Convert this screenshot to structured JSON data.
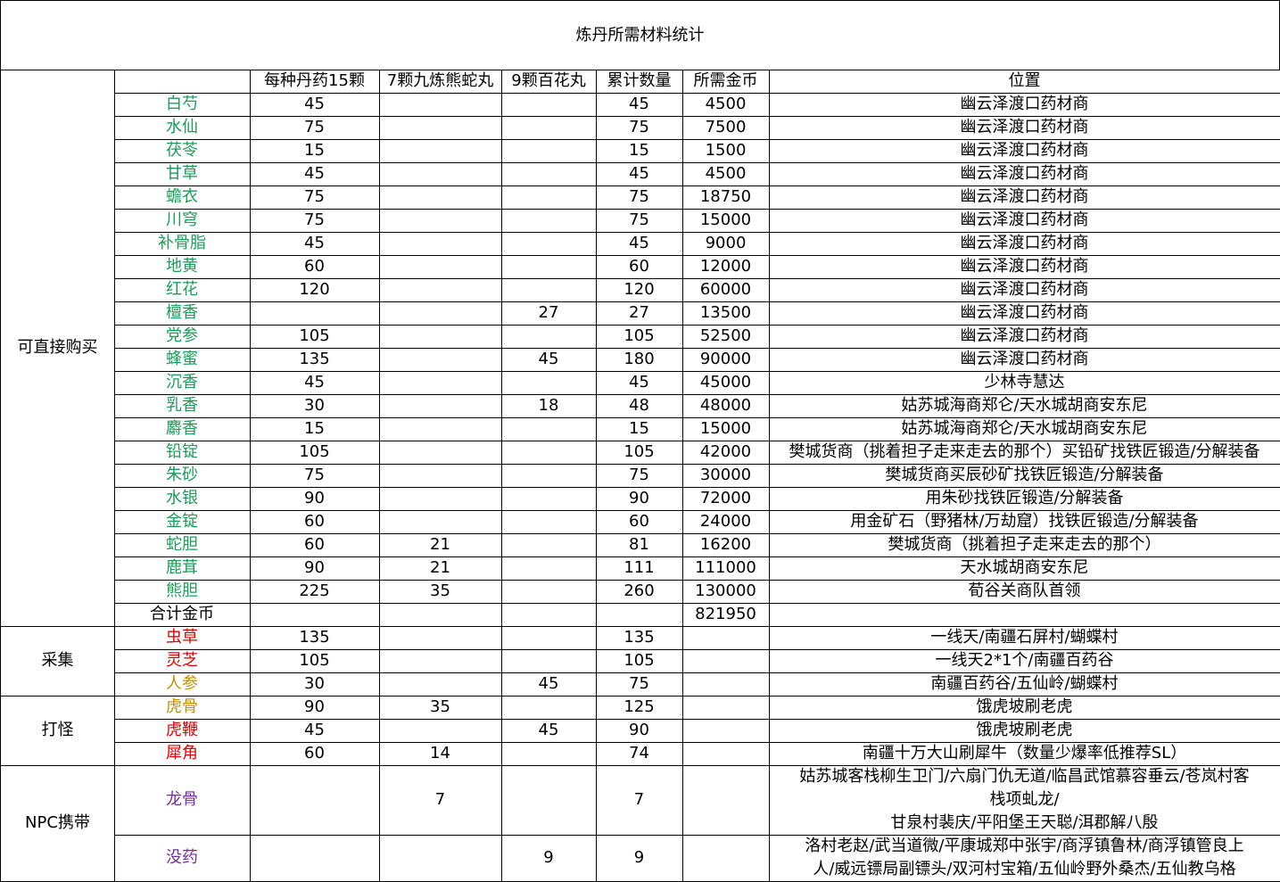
{
  "title": "炼丹所需材料统计",
  "headers": [
    "每种丹药15颗",
    "7颗九炼熊蛇丸",
    "9颗百花丸",
    "累计数量",
    "所需金币",
    "位置"
  ],
  "groups": [
    {
      "label": "可直接购买",
      "rows": [
        {
          "color": "#1b9c5a",
          "cells": [
            "白芍",
            45,
            null,
            null,
            45,
            4500,
            "幽云泽渡口药材商"
          ]
        },
        {
          "color": "#1b9c5a",
          "cells": [
            "水仙",
            75,
            null,
            null,
            75,
            7500,
            "幽云泽渡口药材商"
          ]
        },
        {
          "color": "#1b9c5a",
          "cells": [
            "茯苓",
            15,
            null,
            null,
            15,
            1500,
            "幽云泽渡口药材商"
          ]
        },
        {
          "color": "#1b9c5a",
          "cells": [
            "甘草",
            45,
            null,
            null,
            45,
            4500,
            "幽云泽渡口药材商"
          ]
        },
        {
          "color": "#1b9c5a",
          "cells": [
            "蟾衣",
            75,
            null,
            null,
            75,
            18750,
            "幽云泽渡口药材商"
          ]
        },
        {
          "color": "#1b9c5a",
          "cells": [
            "川穹",
            75,
            null,
            null,
            75,
            15000,
            "幽云泽渡口药材商"
          ]
        },
        {
          "color": "#1b9c5a",
          "cells": [
            "补骨脂",
            45,
            null,
            null,
            45,
            9000,
            "幽云泽渡口药材商"
          ]
        },
        {
          "color": "#1b9c5a",
          "cells": [
            "地黄",
            60,
            null,
            null,
            60,
            12000,
            "幽云泽渡口药材商"
          ]
        },
        {
          "color": "#1b9c5a",
          "cells": [
            "红花",
            120,
            null,
            null,
            120,
            60000,
            "幽云泽渡口药材商"
          ]
        },
        {
          "color": "#1b9c5a",
          "cells": [
            "檀香",
            null,
            null,
            27,
            27,
            13500,
            "幽云泽渡口药材商"
          ]
        },
        {
          "color": "#1b9c5a",
          "cells": [
            "党参",
            105,
            null,
            null,
            105,
            52500,
            "幽云泽渡口药材商"
          ]
        },
        {
          "color": "#1b9c5a",
          "cells": [
            "蜂蜜",
            135,
            null,
            45,
            180,
            90000,
            "幽云泽渡口药材商"
          ]
        },
        {
          "color": "#1b9c5a",
          "cells": [
            "沉香",
            45,
            null,
            null,
            45,
            45000,
            "少林寺慧达"
          ]
        },
        {
          "color": "#1b9c5a",
          "cells": [
            "乳香",
            30,
            null,
            18,
            48,
            48000,
            "姑苏城海商郑仑/天水城胡商安东尼"
          ]
        },
        {
          "color": "#1b9c5a",
          "cells": [
            "麝香",
            15,
            null,
            null,
            15,
            15000,
            "姑苏城海商郑仑/天水城胡商安东尼"
          ]
        },
        {
          "color": "#1b9c5a",
          "cells": [
            "铅锭",
            105,
            null,
            null,
            105,
            42000,
            "樊城货商（挑着担子走来走去的那个）买铅矿找铁匠锻造/分解装备"
          ]
        },
        {
          "color": "#1b9c5a",
          "cells": [
            "朱砂",
            75,
            null,
            null,
            75,
            30000,
            "樊城货商买辰砂矿找铁匠锻造/分解装备"
          ]
        },
        {
          "color": "#1b9c5a",
          "cells": [
            "水银",
            90,
            null,
            null,
            90,
            72000,
            "用朱砂找铁匠锻造/分解装备"
          ]
        },
        {
          "color": "#1b9c5a",
          "cells": [
            "金锭",
            60,
            null,
            null,
            60,
            24000,
            "用金矿石（野猪林/万劫窟）找铁匠锻造/分解装备"
          ]
        },
        {
          "color": "#1b9c5a",
          "cells": [
            "蛇胆",
            60,
            21,
            null,
            81,
            16200,
            "樊城货商（挑着担子走来走去的那个）"
          ]
        },
        {
          "color": "#1b9c5a",
          "cells": [
            "鹿茸",
            90,
            21,
            null,
            111,
            111000,
            "天水城胡商安东尼"
          ]
        },
        {
          "color": "#1b9c5a",
          "cells": [
            "熊胆",
            225,
            35,
            null,
            260,
            130000,
            "荀谷关商队首领"
          ]
        },
        {
          "color": "#000000",
          "cells": [
            "合计金币",
            null,
            null,
            null,
            null,
            821950,
            null
          ]
        }
      ]
    },
    {
      "label": "采集",
      "rows": [
        {
          "color": "#e00000",
          "cells": [
            "虫草",
            135,
            null,
            null,
            135,
            null,
            "一线天/南疆石屏村/蝴蝶村"
          ]
        },
        {
          "color": "#e00000",
          "cells": [
            "灵芝",
            105,
            null,
            null,
            105,
            null,
            "一线天2*1个/南疆百药谷"
          ]
        },
        {
          "color": "#c09000",
          "cells": [
            "人参",
            30,
            null,
            45,
            75,
            null,
            "南疆百药谷/五仙岭/蝴蝶村"
          ]
        }
      ]
    },
    {
      "label": "打怪",
      "rows": [
        {
          "color": "#c09000",
          "cells": [
            "虎骨",
            90,
            35,
            null,
            125,
            null,
            "饿虎坡刷老虎"
          ]
        },
        {
          "color": "#e00000",
          "cells": [
            "虎鞭",
            45,
            null,
            45,
            90,
            null,
            "饿虎坡刷老虎"
          ]
        },
        {
          "color": "#e00000",
          "cells": [
            "犀角",
            60,
            14,
            null,
            74,
            null,
            "南疆十万大山刷犀牛（数量少爆率低推荐SL）"
          ]
        }
      ]
    },
    {
      "label": "NPC携带",
      "rows": [
        {
          "color": "#7030a0",
          "cells": [
            "龙骨",
            null,
            7,
            null,
            7,
            null,
            [
              "姑苏城客栈柳生卫门/六扇门仇无道/临昌武馆慕容垂云/苍岚村客",
              "栈项虬龙/",
              "甘泉村裴庆/平阳堡王天聪/洱郡解八殷"
            ]
          ]
        },
        {
          "color": "#7030a0",
          "cells": [
            "没药",
            null,
            null,
            9,
            9,
            null,
            [
              "洛村老赵/武当道微/平康城郑中张宇/商浮镇鲁林/商浮镇管良上",
              "人/威远镖局副镖头/双河村宝箱/五仙岭野外桑杰/五仙教乌格"
            ]
          ]
        }
      ]
    }
  ]
}
